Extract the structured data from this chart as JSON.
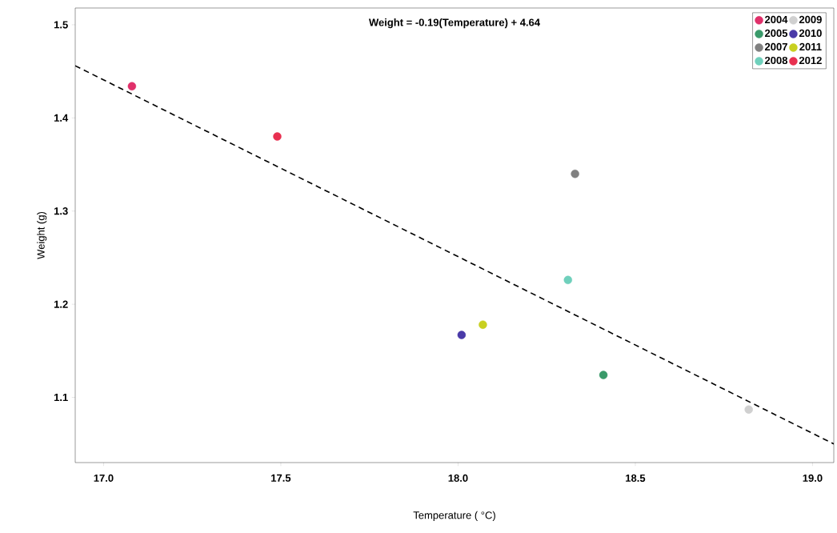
{
  "chart_data": {
    "type": "scatter",
    "xlabel": "Temperature ( °C)",
    "ylabel": "Weight (g)",
    "annotations": [
      "Weight = -0.19(Temperature) + 4.64"
    ],
    "xlim": [
      16.92,
      19.06
    ],
    "ylim": [
      1.03,
      1.518
    ],
    "xticks": [
      {
        "value": 17,
        "label": "17.0"
      },
      {
        "value": 17.5,
        "label": "17.5"
      },
      {
        "value": 18,
        "label": "18.0"
      },
      {
        "value": 18.5,
        "label": "18.5"
      },
      {
        "value": 19,
        "label": "19.0"
      }
    ],
    "yticks": [
      1.1,
      1.2,
      1.3,
      1.4,
      1.5
    ],
    "grid": false,
    "legend": "top right",
    "marker": "circle",
    "series": [
      {
        "name": "2004",
        "color": "#e0306a",
        "x": [
          17.08
        ],
        "values": [
          1.434
        ]
      },
      {
        "name": "2005",
        "color": "#3a9a6a",
        "x": [
          18.41
        ],
        "values": [
          1.124
        ]
      },
      {
        "name": "2007",
        "color": "#808080",
        "x": [
          18.33
        ],
        "values": [
          1.34
        ]
      },
      {
        "name": "2008",
        "color": "#6fd0bc",
        "x": [
          18.31
        ],
        "values": [
          1.226
        ]
      },
      {
        "name": "2009",
        "color": "#d0d0d0",
        "x": [
          18.82
        ],
        "values": [
          1.087
        ]
      },
      {
        "name": "2010",
        "color": "#4a3aa8",
        "x": [
          18.01
        ],
        "values": [
          1.167
        ]
      },
      {
        "name": "2011",
        "color": "#c8d020",
        "x": [
          18.07
        ],
        "values": [
          1.178
        ]
      },
      {
        "name": "2012",
        "color": "#e83050",
        "x": [
          17.49
        ],
        "values": [
          1.38
        ]
      },
      {
        "type": "line",
        "line_style": "dashed",
        "marker": "none",
        "color": "#000000",
        "x": [
          16.92,
          19.06
        ],
        "values": [
          1.456,
          1.05
        ]
      }
    ]
  }
}
